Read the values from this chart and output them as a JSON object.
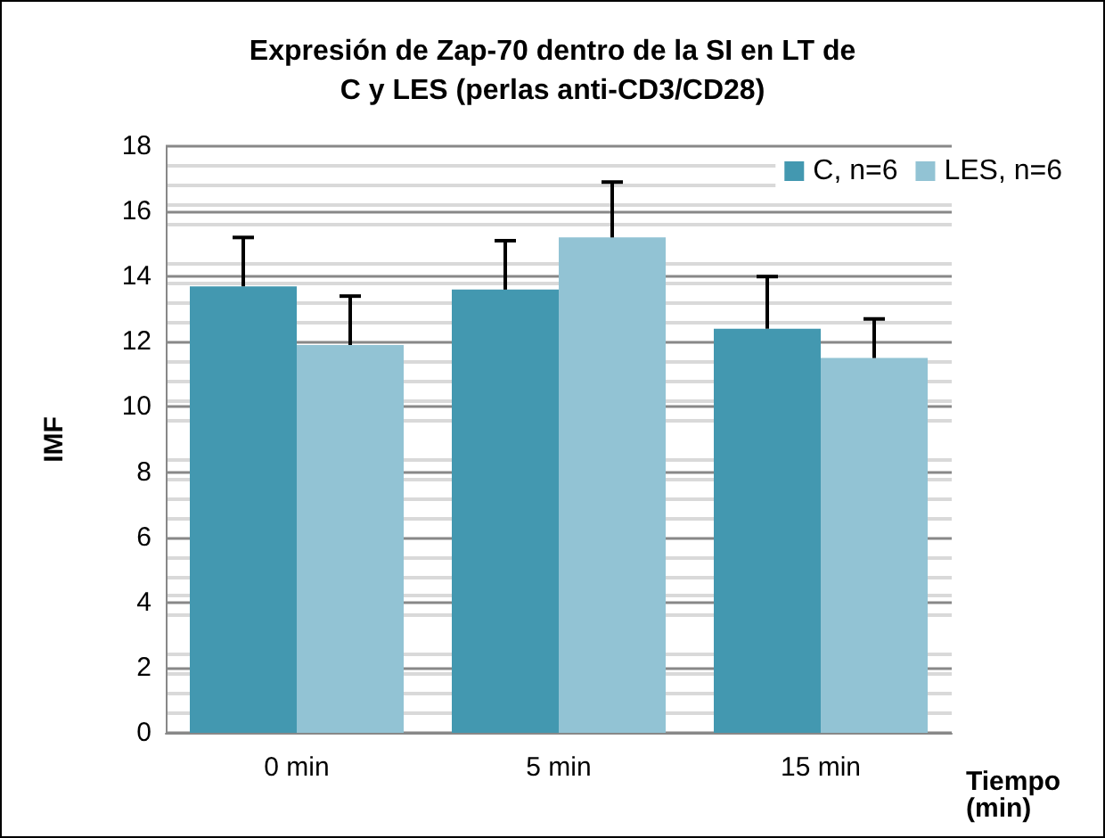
{
  "chart_data": {
    "type": "bar",
    "title": "Expresión de Zap-70 dentro de la SI en LT de\nC y LES (perlas anti-CD3/CD28)",
    "xlabel": "Tiempo\n(min)",
    "ylabel": "IMF",
    "categories": [
      "0 min",
      "5 min",
      "15 min"
    ],
    "series": [
      {
        "name": "C, n=6",
        "color": "#4398b0",
        "values": [
          13.7,
          13.6,
          12.4
        ],
        "errors": [
          [
            13.7,
            15.2
          ],
          [
            13.6,
            15.1
          ],
          [
            12.4,
            14.0
          ]
        ]
      },
      {
        "name": "LES, n=6",
        "color": "#92c3d4",
        "values": [
          11.9,
          15.2,
          11.5
        ],
        "errors": [
          [
            11.9,
            13.4
          ],
          [
            15.2,
            16.9
          ],
          [
            11.5,
            12.7
          ]
        ]
      }
    ],
    "ylim": [
      0,
      18
    ],
    "yticks": [
      0,
      2,
      4,
      6,
      8,
      10,
      12,
      14,
      16,
      18
    ],
    "grid": "y",
    "legend": "top right"
  }
}
